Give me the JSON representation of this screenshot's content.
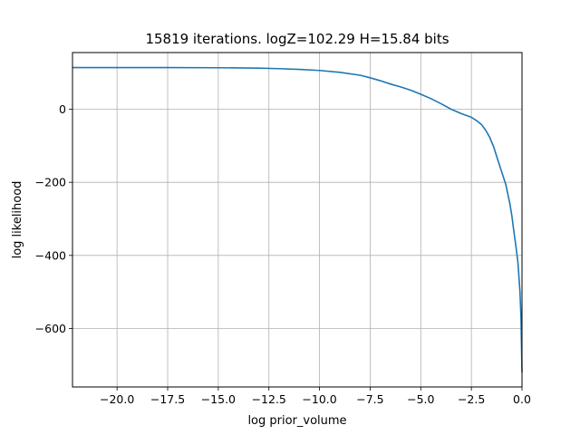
{
  "chart_data": {
    "type": "line",
    "title": "15819 iterations. logZ=102.29 H=15.84 bits",
    "xlabel": "log prior_volume",
    "ylabel": "log likelihood",
    "xlim": [
      -22.2,
      0.0
    ],
    "ylim": [
      -760,
      155
    ],
    "grid": true,
    "x_ticks": [
      -20.0,
      -17.5,
      -15.0,
      -12.5,
      -10.0,
      -7.5,
      -5.0,
      -2.5,
      0.0
    ],
    "x_tick_labels": [
      "−20.0",
      "−17.5",
      "−15.0",
      "−12.5",
      "−10.0",
      "−7.5",
      "−5.0",
      "−2.5",
      "0.0"
    ],
    "y_ticks": [
      -600,
      -400,
      -200,
      0
    ],
    "y_tick_labels": [
      "−600",
      "−400",
      "−200",
      "0"
    ],
    "line_color": "#1f77b4",
    "series": [
      {
        "x": [
          -22.2,
          -20.0,
          -17.5,
          -15.0,
          -13.0,
          -12.0,
          -11.0,
          -10.0,
          -9.0,
          -8.0,
          -7.5,
          -7.0,
          -6.5,
          -6.0,
          -5.5,
          -5.0,
          -4.5,
          -4.0,
          -3.5,
          -3.0,
          -2.5,
          -2.2,
          -2.0,
          -1.8,
          -1.6,
          -1.4,
          -1.2,
          -1.0,
          -0.8,
          -0.6,
          -0.5,
          -0.4,
          -0.3,
          -0.2,
          -0.1,
          -0.05,
          0.0
        ],
        "y": [
          114,
          114,
          114,
          113.5,
          112.5,
          111,
          109,
          106,
          101,
          93,
          86,
          78,
          69,
          61,
          52,
          41,
          29,
          15,
          0,
          -12,
          -22,
          -33,
          -42,
          -57,
          -76,
          -103,
          -138,
          -172,
          -206,
          -258,
          -292,
          -335,
          -375,
          -420,
          -500,
          -570,
          -720
        ]
      }
    ]
  }
}
